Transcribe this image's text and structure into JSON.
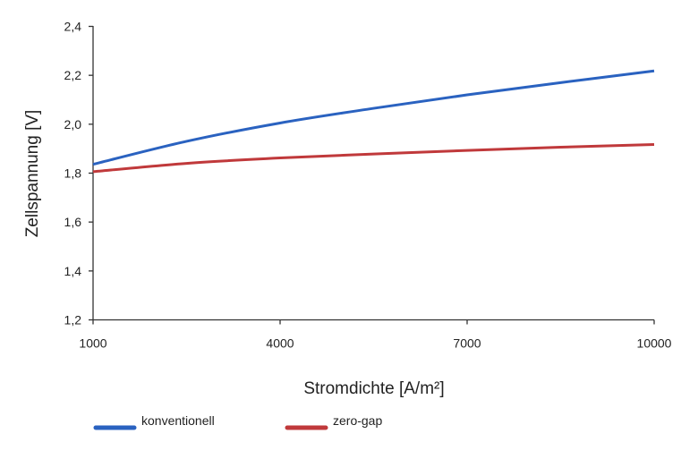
{
  "chart_data": {
    "type": "line",
    "title": "",
    "xlabel": "Stromdichte [A/m²]",
    "ylabel": "Zellspannung [V]",
    "xlim": [
      1000,
      10000
    ],
    "ylim": [
      1.2,
      2.4
    ],
    "x_ticks": [
      "1000",
      "4000",
      "7000",
      "10000"
    ],
    "x_tick_values": [
      1000,
      4000,
      7000,
      10000
    ],
    "y_ticks": [
      "1,2",
      "1,4",
      "1,6",
      "1,8",
      "2,0",
      "2,2",
      "2,4"
    ],
    "y_tick_values": [
      1.2,
      1.4,
      1.6,
      1.8,
      2.0,
      2.2,
      2.4
    ],
    "grid": false,
    "legend_position": "bottom",
    "x": [
      1000,
      2500,
      4000,
      5500,
      7000,
      8500,
      10000
    ],
    "series": [
      {
        "name": "konventionell",
        "color": "#2a62c0",
        "values": [
          1.836,
          1.93,
          2.005,
          2.065,
          2.12,
          2.17,
          2.218
        ]
      },
      {
        "name": "zero-gap",
        "color": "#c0393b",
        "values": [
          1.806,
          1.84,
          1.862,
          1.878,
          1.893,
          1.906,
          1.917
        ]
      }
    ]
  }
}
